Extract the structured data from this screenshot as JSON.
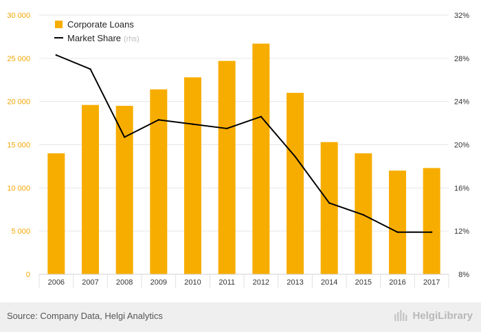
{
  "chart_data": {
    "type": "bar+line",
    "categories": [
      "2006",
      "2007",
      "2008",
      "2009",
      "2010",
      "2011",
      "2012",
      "2013",
      "2014",
      "2015",
      "2016",
      "2017"
    ],
    "series": [
      {
        "name": "Corporate Loans",
        "type": "bar",
        "axis": "left",
        "color": "#f7ad00",
        "values": [
          14000,
          19600,
          19500,
          21400,
          22800,
          24700,
          26700,
          21000,
          15300,
          14000,
          12000,
          12300
        ]
      },
      {
        "name": "Market Share",
        "legend_suffix": "(rhs)",
        "type": "line",
        "axis": "right",
        "color": "#000000",
        "values": [
          28.3,
          27.0,
          20.7,
          22.3,
          21.9,
          21.5,
          22.6,
          18.9,
          14.6,
          13.5,
          11.9,
          11.9
        ]
      }
    ],
    "left_axis": {
      "min": 0,
      "max": 30000,
      "ticks": [
        0,
        5000,
        10000,
        15000,
        20000,
        25000,
        30000
      ],
      "tick_labels": [
        "0",
        "5 000",
        "10 000",
        "15 000",
        "20 000",
        "25 000",
        "30 000"
      ]
    },
    "right_axis": {
      "min": 8,
      "max": 32,
      "ticks": [
        8,
        12,
        16,
        20,
        24,
        28,
        32
      ],
      "tick_labels": [
        "8%",
        "12%",
        "16%",
        "20%",
        "24%",
        "28%",
        "32%"
      ]
    },
    "grid": true,
    "legend_position": "top-left"
  },
  "footer": {
    "source": "Source: Company Data, Helgi Analytics",
    "brand": "HelgiLibrary"
  },
  "colors": {
    "left_tick": "#f0a500",
    "right_tick": "#333333",
    "grid": "#e6e6e6",
    "footer_bg": "#efefef"
  }
}
